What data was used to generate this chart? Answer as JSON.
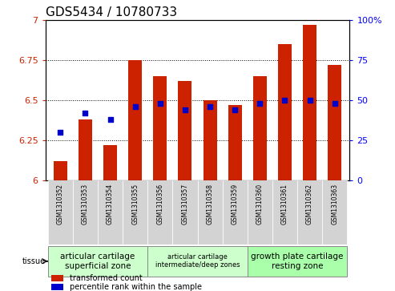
{
  "title": "GDS5434 / 10780733",
  "samples": [
    "GSM1310352",
    "GSM1310353",
    "GSM1310354",
    "GSM1310355",
    "GSM1310356",
    "GSM1310357",
    "GSM1310358",
    "GSM1310359",
    "GSM1310360",
    "GSM1310361",
    "GSM1310362",
    "GSM1310363"
  ],
  "red_values": [
    6.12,
    6.38,
    6.22,
    6.75,
    6.65,
    6.62,
    6.5,
    6.47,
    6.65,
    6.85,
    6.97,
    6.72
  ],
  "blue_percentiles": [
    30,
    42,
    38,
    46,
    48,
    44,
    46,
    44,
    48,
    50,
    50,
    48
  ],
  "ymin": 6.0,
  "ymax": 7.0,
  "y2min": 0,
  "y2max": 100,
  "yticks": [
    6.0,
    6.25,
    6.5,
    6.75,
    7.0
  ],
  "ytick_labels": [
    "6",
    "6.25",
    "6.5",
    "6.75",
    "7"
  ],
  "y2ticks": [
    0,
    25,
    50,
    75,
    100
  ],
  "y2tick_labels": [
    "0",
    "25",
    "50",
    "75",
    "100%"
  ],
  "bar_color": "#cc2200",
  "dot_color": "#0000cc",
  "groups": [
    {
      "label": "articular cartilage\nsuperficial zone",
      "start": 0,
      "end": 3,
      "color": "#ccffcc"
    },
    {
      "label": "articular cartilage\nintermediate/deep zones",
      "start": 4,
      "end": 7,
      "color": "#ccffcc"
    },
    {
      "label": "growth plate cartilage\nresting zone",
      "start": 8,
      "end": 11,
      "color": "#aaffaa"
    }
  ],
  "tissue_label": "tissue",
  "legend_red": "transformed count",
  "legend_blue": "percentile rank within the sample",
  "cell_bg": "#d3d3d3",
  "plot_bg": "#ffffff",
  "title_fontsize": 11,
  "tick_fontsize": 8,
  "bar_width": 0.55
}
